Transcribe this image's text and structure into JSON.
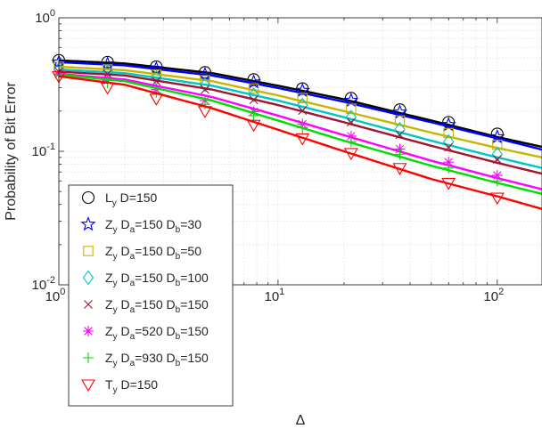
{
  "chart_data": {
    "type": "line",
    "x_scale": "log",
    "y_scale": "log",
    "xlim": [
      1,
      160
    ],
    "ylim": [
      0.01,
      1
    ],
    "xlabel": "Δ",
    "ylabel": "Probability of Bit Error",
    "grid": true,
    "legend_position": "bottom-left",
    "x_ticks": [
      {
        "value": 1,
        "base": "10",
        "exp": "0"
      },
      {
        "value": 10,
        "base": "10",
        "exp": "1"
      },
      {
        "value": 100,
        "base": "10",
        "exp": "2"
      }
    ],
    "y_ticks": [
      {
        "value": 0.01,
        "base": "10",
        "exp": "-2"
      },
      {
        "value": 0.1,
        "base": "10",
        "exp": "-1"
      },
      {
        "value": 1,
        "base": "10",
        "exp": "0"
      }
    ],
    "marker_x": [
      1,
      1.668,
      2.783,
      4.642,
      7.743,
      12.92,
      21.54,
      35.94,
      59.95,
      100
    ],
    "series": [
      {
        "label_main": "L",
        "label_subs": [
          [
            "y",
            " D=150"
          ]
        ],
        "color": "#000000",
        "marker": "circle",
        "curve": [
          [
            1,
            0.48
          ],
          [
            2,
            0.455
          ],
          [
            5,
            0.385
          ],
          [
            10,
            0.31
          ],
          [
            20,
            0.245
          ],
          [
            50,
            0.17
          ],
          [
            100,
            0.128
          ],
          [
            160,
            0.108
          ]
        ],
        "markers": [
          0.48,
          0.465,
          0.43,
          0.39,
          0.345,
          0.295,
          0.25,
          0.205,
          0.165,
          0.135
        ]
      },
      {
        "label_main": "Z",
        "label_subs": [
          [
            "y",
            " D"
          ],
          [
            "a",
            "=150 D"
          ],
          [
            "b",
            "=30"
          ]
        ],
        "color": "#0000ff",
        "marker": "star",
        "curve": [
          [
            1,
            0.465
          ],
          [
            2,
            0.44
          ],
          [
            5,
            0.37
          ],
          [
            10,
            0.298
          ],
          [
            20,
            0.235
          ],
          [
            50,
            0.165
          ],
          [
            100,
            0.125
          ],
          [
            160,
            0.103
          ]
        ],
        "markers": [
          0.465,
          0.45,
          0.415,
          0.375,
          0.33,
          0.285,
          0.24,
          0.196,
          0.158,
          0.128
        ]
      },
      {
        "label_main": "Z",
        "label_subs": [
          [
            "y",
            " D"
          ],
          [
            "a",
            "=150 D"
          ],
          [
            "b",
            "=50"
          ]
        ],
        "color": "#c9b400",
        "marker": "square",
        "curve": [
          [
            1,
            0.43
          ],
          [
            2,
            0.405
          ],
          [
            5,
            0.335
          ],
          [
            10,
            0.262
          ],
          [
            20,
            0.2
          ],
          [
            50,
            0.138
          ],
          [
            100,
            0.106
          ],
          [
            160,
            0.09
          ]
        ],
        "markers": [
          0.43,
          0.41,
          0.375,
          0.34,
          0.295,
          0.25,
          0.208,
          0.17,
          0.137,
          0.112
        ]
      },
      {
        "label_main": "Z",
        "label_subs": [
          [
            "y",
            " D"
          ],
          [
            "a",
            "=150 D"
          ],
          [
            "b",
            "=100"
          ]
        ],
        "color": "#00c5c5",
        "marker": "diamond",
        "curve": [
          [
            1,
            0.41
          ],
          [
            2,
            0.385
          ],
          [
            5,
            0.31
          ],
          [
            10,
            0.24
          ],
          [
            20,
            0.18
          ],
          [
            50,
            0.12
          ],
          [
            100,
            0.09
          ],
          [
            160,
            0.075
          ]
        ],
        "markers": [
          0.41,
          0.395,
          0.355,
          0.315,
          0.265,
          0.222,
          0.18,
          0.146,
          0.118,
          0.095
        ]
      },
      {
        "label_main": "Z",
        "label_subs": [
          [
            "y",
            " D"
          ],
          [
            "a",
            "=150 D"
          ],
          [
            "b",
            "=150"
          ]
        ],
        "color": "#a2142f",
        "marker": "x",
        "curve": [
          [
            1,
            0.395
          ],
          [
            2,
            0.37
          ],
          [
            5,
            0.29
          ],
          [
            10,
            0.222
          ],
          [
            20,
            0.165
          ],
          [
            50,
            0.11
          ],
          [
            100,
            0.082
          ],
          [
            160,
            0.068
          ]
        ],
        "markers": [
          0.395,
          0.38,
          0.335,
          0.29,
          0.243,
          0.202,
          0.165,
          0.133,
          0.107,
          0.087
        ]
      },
      {
        "label_main": "Z",
        "label_subs": [
          [
            "y",
            " D"
          ],
          [
            "a",
            "=520 D"
          ],
          [
            "b",
            "=150"
          ]
        ],
        "color": "#ff00ff",
        "marker": "asterisk",
        "curve": [
          [
            1,
            0.38
          ],
          [
            2,
            0.345
          ],
          [
            5,
            0.255
          ],
          [
            10,
            0.185
          ],
          [
            20,
            0.132
          ],
          [
            50,
            0.085
          ],
          [
            100,
            0.063
          ],
          [
            160,
            0.052
          ]
        ],
        "markers": [
          0.38,
          0.34,
          0.29,
          0.24,
          0.198,
          0.16,
          0.13,
          0.104,
          0.083,
          0.066
        ]
      },
      {
        "label_main": "Z",
        "label_subs": [
          [
            "y",
            " D"
          ],
          [
            "a",
            "=930 D"
          ],
          [
            "b",
            "=150"
          ]
        ],
        "color": "#00dd00",
        "marker": "plus",
        "curve": [
          [
            1,
            0.375
          ],
          [
            2,
            0.335
          ],
          [
            5,
            0.24
          ],
          [
            10,
            0.17
          ],
          [
            20,
            0.12
          ],
          [
            50,
            0.078
          ],
          [
            100,
            0.058
          ],
          [
            160,
            0.048
          ]
        ],
        "markers": [
          0.375,
          0.325,
          0.275,
          0.225,
          0.185,
          0.15,
          0.118,
          0.095,
          0.075,
          0.06
        ]
      },
      {
        "label_main": "T",
        "label_subs": [
          [
            "y",
            " D=150"
          ]
        ],
        "color": "#ff0000",
        "marker": "triangle-down",
        "curve": [
          [
            1,
            0.365
          ],
          [
            2,
            0.315
          ],
          [
            5,
            0.21
          ],
          [
            10,
            0.145
          ],
          [
            20,
            0.1
          ],
          [
            50,
            0.062
          ],
          [
            100,
            0.046
          ],
          [
            160,
            0.037
          ]
        ],
        "markers": [
          0.365,
          0.3,
          0.248,
          0.2,
          0.158,
          0.125,
          0.097,
          0.075,
          0.058,
          0.045
        ]
      }
    ]
  }
}
